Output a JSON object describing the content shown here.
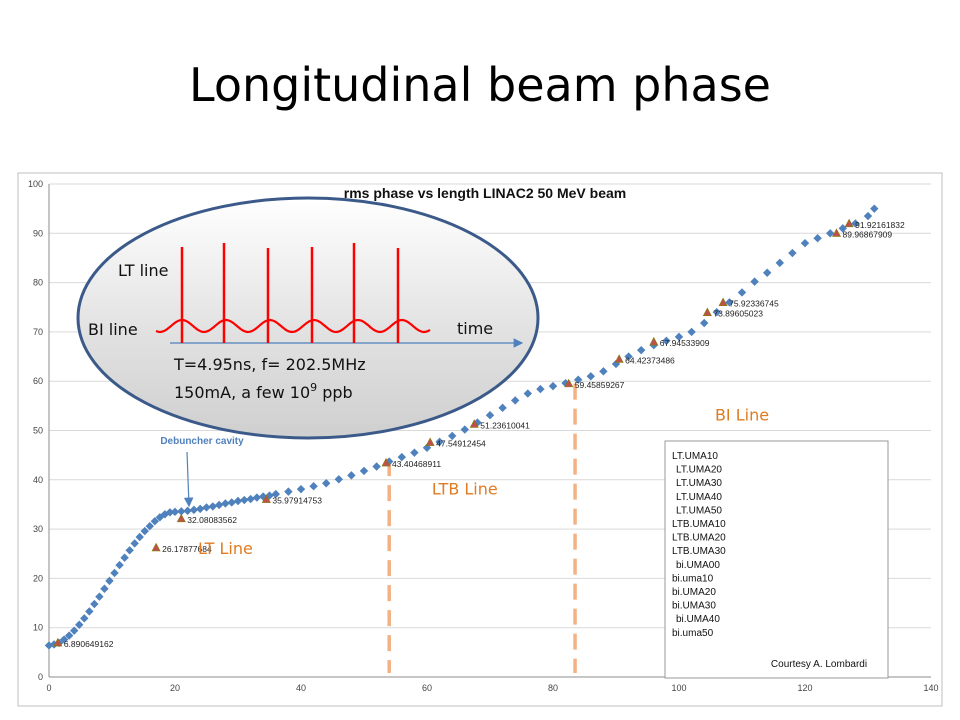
{
  "slide_title": "Longitudinal beam phase",
  "chart_data": {
    "type": "scatter",
    "title": "rms phase vs length LINAC2 50 MeV beam",
    "xlabel": "",
    "ylabel": "",
    "xlim": [
      0,
      140
    ],
    "ylim": [
      0,
      100
    ],
    "x_ticks": [
      0,
      20,
      40,
      60,
      80,
      100,
      120,
      140
    ],
    "y_ticks": [
      0,
      10,
      20,
      30,
      40,
      50,
      60,
      70,
      80,
      90,
      100
    ],
    "grid": true,
    "series": [
      {
        "color": "#4f81bd",
        "marker": "diamond",
        "points": [
          [
            0,
            6.4
          ],
          [
            0.8,
            6.6
          ],
          [
            1.6,
            6.9
          ],
          [
            2.4,
            7.6
          ],
          [
            3.2,
            8.4
          ],
          [
            4,
            9.4
          ],
          [
            4.8,
            10.6
          ],
          [
            5.6,
            11.9
          ],
          [
            6.4,
            13.3
          ],
          [
            7.2,
            14.8
          ],
          [
            8,
            16.3
          ],
          [
            8.8,
            17.9
          ],
          [
            9.6,
            19.5
          ],
          [
            10.4,
            21.1
          ],
          [
            11.2,
            22.7
          ],
          [
            12,
            24.2
          ],
          [
            12.8,
            25.7
          ],
          [
            13.6,
            27.1
          ],
          [
            14.4,
            28.4
          ],
          [
            15.2,
            29.6
          ],
          [
            16,
            30.6
          ],
          [
            16.8,
            31.6
          ],
          [
            17.6,
            32.4
          ],
          [
            18.4,
            33.0
          ],
          [
            19.2,
            33.4
          ],
          [
            20,
            33.5
          ],
          [
            21,
            33.6
          ],
          [
            22,
            33.7
          ],
          [
            23,
            33.9
          ],
          [
            24,
            34.1
          ],
          [
            25,
            34.4
          ],
          [
            26,
            34.6
          ],
          [
            27,
            34.9
          ],
          [
            28,
            35.2
          ],
          [
            29,
            35.4
          ],
          [
            30,
            35.7
          ],
          [
            31,
            35.9
          ],
          [
            32,
            36.1
          ],
          [
            33,
            36.4
          ],
          [
            34,
            36.6
          ],
          [
            35,
            36.8
          ],
          [
            36,
            37.1
          ],
          [
            38,
            37.6
          ],
          [
            40,
            38.1
          ],
          [
            42,
            38.7
          ],
          [
            44,
            39.3
          ],
          [
            46,
            40.1
          ],
          [
            48,
            40.9
          ],
          [
            50,
            41.8
          ],
          [
            52,
            42.7
          ],
          [
            54,
            43.7
          ],
          [
            56,
            44.6
          ],
          [
            58,
            45.5
          ],
          [
            60,
            46.5
          ],
          [
            62,
            47.7
          ],
          [
            64,
            48.9
          ],
          [
            66,
            50.2
          ],
          [
            68,
            51.6
          ],
          [
            70,
            53.1
          ],
          [
            72,
            54.6
          ],
          [
            74,
            56.1
          ],
          [
            76,
            57.5
          ],
          [
            78,
            58.4
          ],
          [
            80,
            59.0
          ],
          [
            82,
            59.6
          ],
          [
            84,
            60.3
          ],
          [
            86,
            61.0
          ],
          [
            88,
            62.0
          ],
          [
            90,
            63.5
          ],
          [
            92,
            65.0
          ],
          [
            94,
            66.3
          ],
          [
            96,
            67.3
          ],
          [
            98,
            68.2
          ],
          [
            100,
            69.0
          ],
          [
            102,
            70.0
          ],
          [
            104,
            71.8
          ],
          [
            106,
            74.0
          ],
          [
            108,
            76.0
          ],
          [
            110,
            78.0
          ],
          [
            112,
            80.2
          ],
          [
            114,
            82.0
          ],
          [
            116,
            84.0
          ],
          [
            118,
            86.0
          ],
          [
            120,
            88.0
          ],
          [
            122,
            89.0
          ],
          [
            124,
            90.0
          ],
          [
            126,
            91.0
          ],
          [
            128,
            92.0
          ],
          [
            130,
            93.5
          ],
          [
            131,
            95.0
          ]
        ]
      },
      {
        "color": "#c0504d",
        "marker": "triangle",
        "points": [
          [
            1.4,
            6.890649162
          ],
          [
            17,
            26.17877684
          ],
          [
            21,
            32.08083562
          ],
          [
            34.5,
            35.97914753
          ],
          [
            53.5,
            43.40468911
          ],
          [
            60.5,
            47.54912454
          ],
          [
            67.5,
            51.23610041
          ],
          [
            82.5,
            59.45859267
          ],
          [
            90.5,
            64.42373486
          ],
          [
            96,
            67.94533909
          ],
          [
            104.5,
            73.89605023
          ],
          [
            107,
            75.92336745
          ],
          [
            125,
            89.96867909
          ],
          [
            127,
            91.92161832
          ]
        ]
      }
    ],
    "annotations": [
      {
        "text": "6.890649162",
        "x": 1.4,
        "y": 6.890649162
      },
      {
        "text": "26.17877684",
        "x": 17,
        "y": 26.17877684
      },
      {
        "text": "32.08083562",
        "x": 21,
        "y": 32.08083562
      },
      {
        "text": "35.97914753",
        "x": 34.5,
        "y": 35.97914753
      },
      {
        "text": "43.40468911",
        "x": 53.5,
        "y": 43.40468911
      },
      {
        "text": "47.54912454",
        "x": 60.5,
        "y": 47.54912454
      },
      {
        "text": "51.23610041",
        "x": 67.5,
        "y": 51.23610041
      },
      {
        "text": "59.45859267",
        "x": 82.5,
        "y": 59.45859267
      },
      {
        "text": "64.42373486",
        "x": 90.5,
        "y": 64.42373486
      },
      {
        "text": "67.94533909",
        "x": 96,
        "y": 67.94533909
      },
      {
        "text": "73.89605023",
        "x": 104.5,
        "y": 73.89605023
      },
      {
        "text": "75.92336745",
        "x": 107,
        "y": 75.92336745
      },
      {
        "text": "89.96867909",
        "x": 125,
        "y": 89.96867909
      },
      {
        "text": "91.92161832",
        "x": 127,
        "y": 91.92161832
      }
    ],
    "legend_entries": [
      "LT.UMA10",
      "LT.UMA20",
      "LT.UMA30",
      "LT.UMA40",
      "LT.UMA50",
      "LTB.UMA10",
      "LTB.UMA20",
      "LTB.UMA30",
      "bi.UMA00",
      "bi.uma10",
      "bi.UMA20",
      "bi.UMA30",
      "bi.UMA40",
      "bi.uma50"
    ],
    "legend_placement": "bottom-right",
    "credit": "Courtesy A. Lombardi",
    "debuncher_label": "Debuncher cavity",
    "regions": [
      {
        "label": "LT Line",
        "x": 28,
        "y": 25
      },
      {
        "label": "LTB Line",
        "x": 66,
        "y": 37
      },
      {
        "label": "BI Line",
        "x": 110,
        "y": 52
      }
    ],
    "divider_x": [
      54,
      83.5
    ],
    "colors": {
      "series": "#4f81bd",
      "markers": "#c0504d",
      "regions": "#e07b21",
      "dividers": "#f4b183",
      "pulses": "#ff0000",
      "arrow": "#4f81bd"
    }
  },
  "inset": {
    "lt_line": "LT line",
    "bi_line": "BI line",
    "time": "time",
    "period_text": "T=4.95ns, f= 202.5MHz",
    "current_prefix": "150mA, a few 10",
    "current_exp": "9",
    "current_suffix": " ppb"
  }
}
